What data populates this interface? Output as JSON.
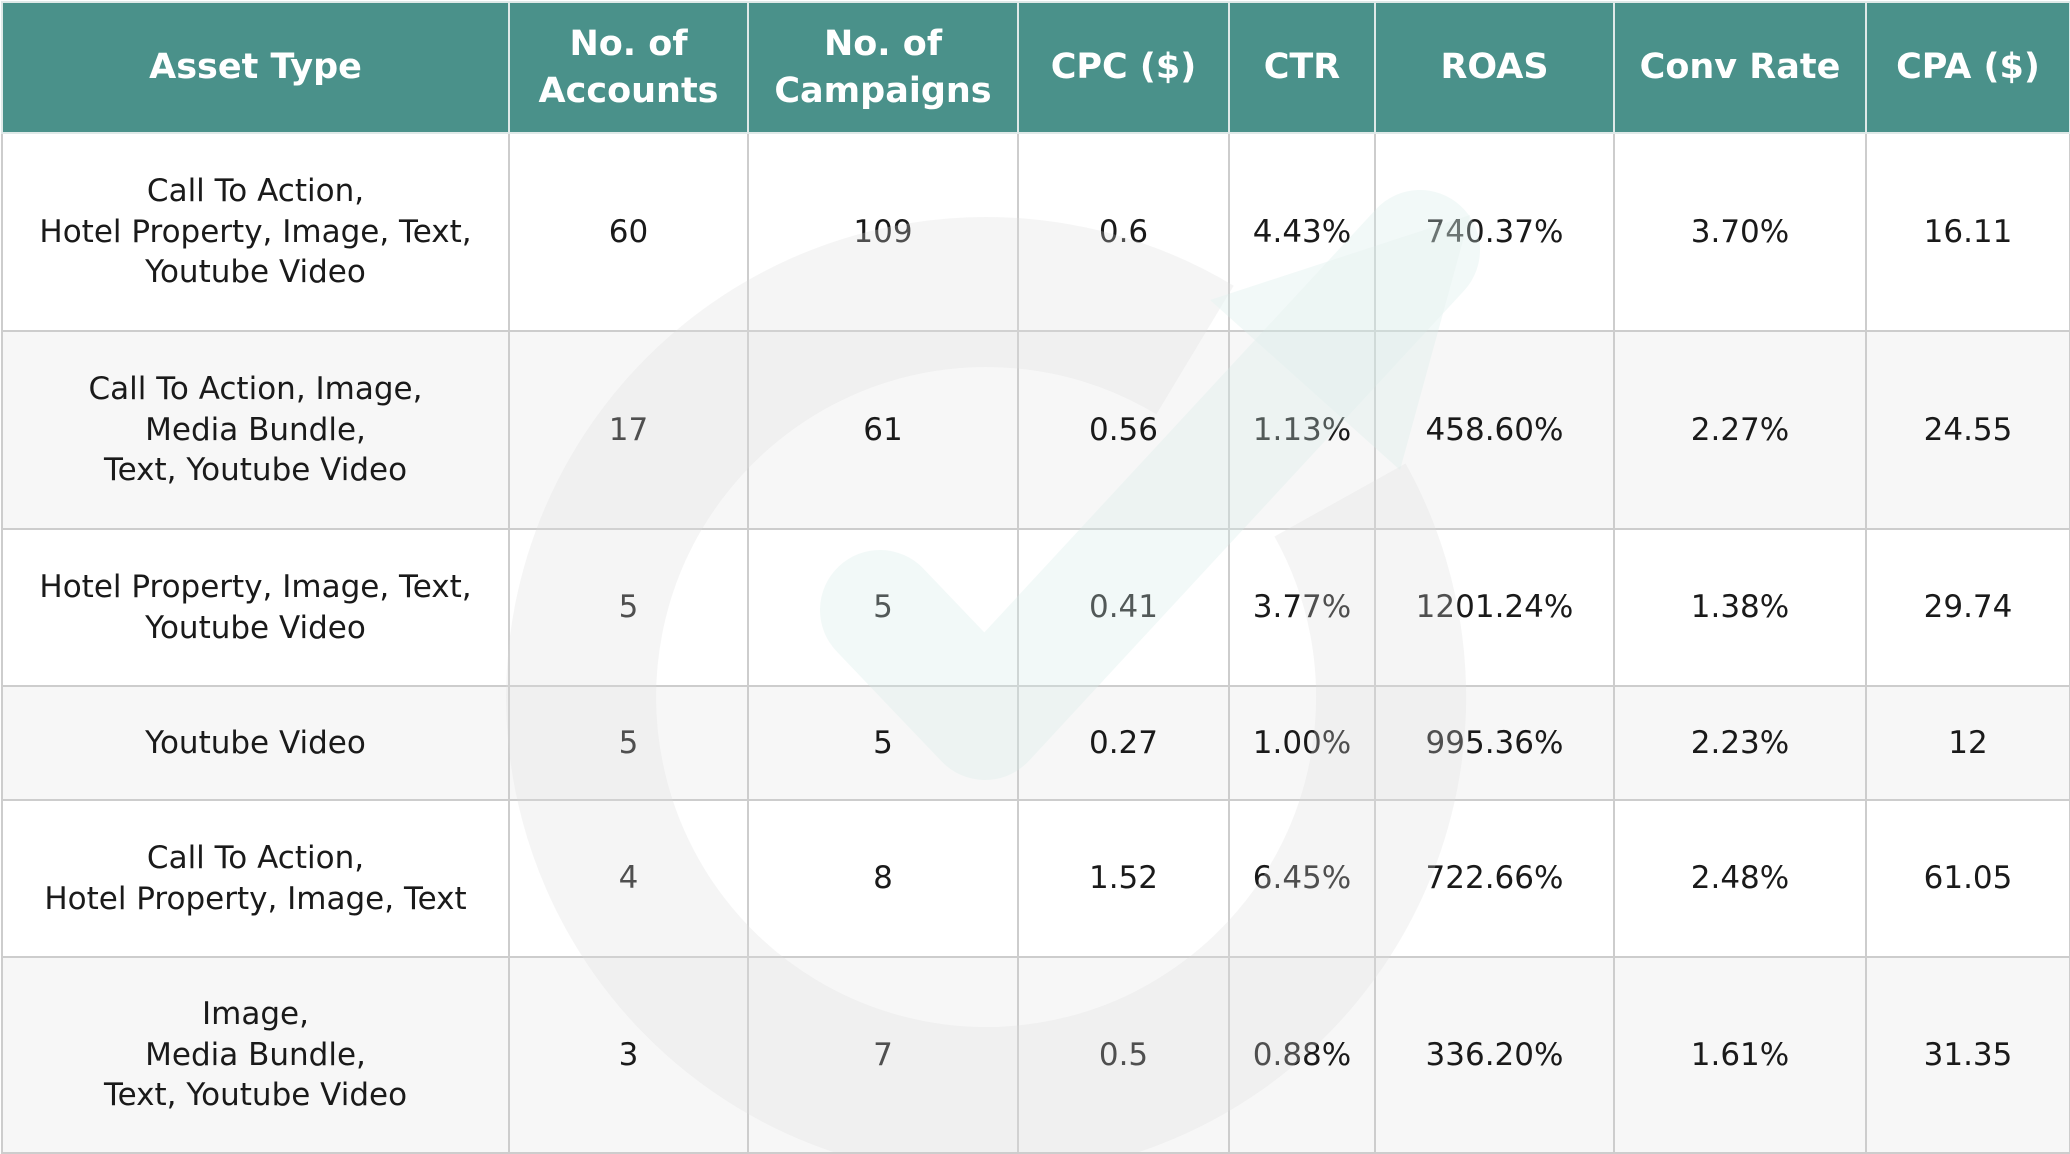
{
  "chart_data": {
    "type": "table",
    "columns": [
      "Asset Type",
      "No. of Accounts",
      "No. of Campaigns",
      "CPC ($)",
      "CTR",
      "ROAS",
      "Conv Rate",
      "CPA ($)"
    ],
    "header_lines": [
      [
        "Asset Type"
      ],
      [
        "No. of",
        "Accounts"
      ],
      [
        "No. of",
        "Campaigns"
      ],
      [
        "CPC ($)"
      ],
      [
        "CTR"
      ],
      [
        "ROAS"
      ],
      [
        "Conv Rate"
      ],
      [
        "CPA ($)"
      ]
    ],
    "rows": [
      {
        "asset_type_lines": [
          "Call To Action,",
          "Hotel Property, Image, Text,",
          "Youtube Video"
        ],
        "cells": [
          "60",
          "109",
          "0.6",
          "4.43%",
          "740.37%",
          "3.70%",
          "16.11"
        ]
      },
      {
        "asset_type_lines": [
          "Call To Action, Image,",
          "Media Bundle,",
          "Text, Youtube Video"
        ],
        "cells": [
          "17",
          "61",
          "0.56",
          "1.13%",
          "458.60%",
          "2.27%",
          "24.55"
        ]
      },
      {
        "asset_type_lines": [
          "Hotel Property, Image, Text,",
          "Youtube Video"
        ],
        "cells": [
          "5",
          "5",
          "0.41",
          "3.77%",
          "1201.24%",
          "1.38%",
          "29.74"
        ]
      },
      {
        "asset_type_lines": [
          "Youtube Video"
        ],
        "cells": [
          "5",
          "5",
          "0.27",
          "1.00%",
          "995.36%",
          "2.23%",
          "12"
        ]
      },
      {
        "asset_type_lines": [
          "Call To Action,",
          "Hotel Property, Image, Text"
        ],
        "cells": [
          "4",
          "8",
          "1.52",
          "6.45%",
          "722.66%",
          "2.48%",
          "61.05"
        ]
      },
      {
        "asset_type_lines": [
          "Image,",
          "Media Bundle,",
          "Text, Youtube Video"
        ],
        "cells": [
          "3",
          "7",
          "0.5",
          "0.88%",
          "336.20%",
          "1.61%",
          "31.35"
        ]
      }
    ]
  },
  "colors": {
    "header_bg": "#4a918a",
    "header_text": "#ffffff",
    "border": "#cdcdcd",
    "alt_row_bg": "#f4f4f4",
    "watermark_gray": "#e6e6e6",
    "watermark_teal": "#e3f1ef"
  },
  "icons": {
    "watermark": "circular-arrow-check-logo-icon"
  }
}
